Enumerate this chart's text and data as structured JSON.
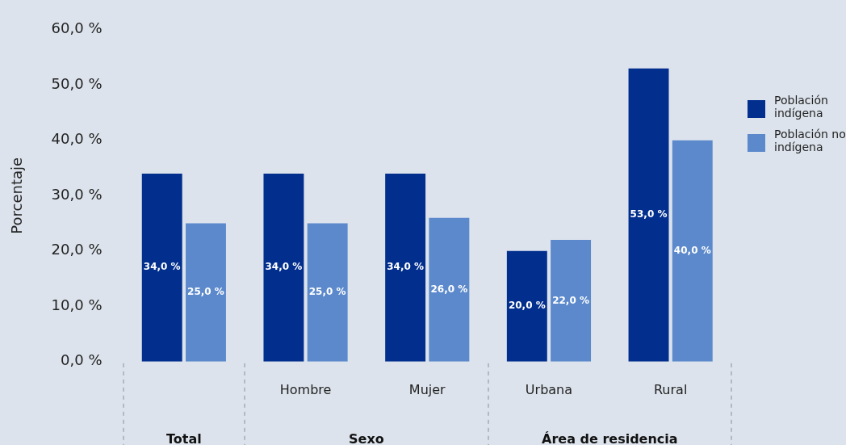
{
  "chart_data": {
    "type": "bar",
    "ylabel": "Porcentaje",
    "categories": [
      null,
      "Hombre",
      "Mujer",
      "Urbana",
      "Rural"
    ],
    "series": [
      {
        "name": "Población indígena",
        "color": "#022f8e",
        "values": [
          34,
          34,
          34,
          20,
          53
        ],
        "value_labels": [
          "34,0 %",
          "34,0 %",
          "34,0 %",
          "20,0 %",
          "53,0 %"
        ]
      },
      {
        "name": "Población no indígena",
        "color": "#5b89cb",
        "values": [
          25,
          25,
          26,
          22,
          40
        ],
        "value_labels": [
          "25,0 %",
          "25,0 %",
          "26,0 %",
          "22,0 %",
          "40,0 %"
        ]
      }
    ],
    "ylim": [
      0,
      60
    ],
    "yticks": [
      {
        "value": 0,
        "label": "0,0 %"
      },
      {
        "value": 10,
        "label": "10,0 %"
      },
      {
        "value": 20,
        "label": "20,0 %"
      },
      {
        "value": 30,
        "label": "30,0 %"
      },
      {
        "value": 40,
        "label": "40,0 %"
      },
      {
        "value": 50,
        "label": "50,0 %"
      },
      {
        "value": 60,
        "label": "60,0 %"
      }
    ],
    "annotations": [
      "Total",
      "Sexo",
      "Área de residencia"
    ],
    "grid": false,
    "legend": "right"
  }
}
